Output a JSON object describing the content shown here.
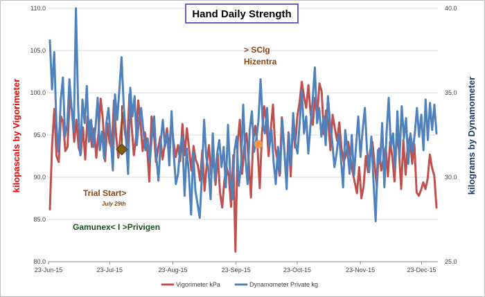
{
  "chart_data": {
    "type": "line",
    "title": "Hand Daily Strength",
    "ylabel_left": "kilopascals  by Vigorimeter",
    "ylabel_right": "kilograms by Dynamometer",
    "ylim_left": [
      80,
      110
    ],
    "ylim_right": [
      25,
      40
    ],
    "yticks_left": [
      "80.0",
      "85.0",
      "90.0",
      "95.0",
      "100.0",
      "105.0",
      "110.0"
    ],
    "yticks_right": [
      "25.0",
      "30.0",
      "35.0",
      "40.0"
    ],
    "x_date_start": "2015-06-23",
    "x_date_end": "2015-12-31",
    "xticks": [
      "23-Jun-15",
      "23-Jul-15",
      "23-Aug-15",
      "23-Sep-15",
      "23-Oct-15",
      "23-Nov-15",
      "23-Dec-15"
    ],
    "grid": "horizontal",
    "legend_position": "bottom",
    "series": [
      {
        "name": "Vigorimeter kPa",
        "axis": "left",
        "color": "#c0504d",
        "values": [
          86.2,
          93.8,
          98.1,
          92.5,
          91.8,
          97.2,
          96.5,
          93.1,
          93.6,
          99.4,
          97.8,
          94.2,
          96.8,
          93.5,
          92.7,
          95.9,
          92.1,
          97.2,
          96.4,
          93.6,
          95.8,
          92.3,
          95.2,
          99.3,
          96.8,
          91.9,
          96.4,
          94.1,
          93.4,
          99.1,
          94.8,
          92.3,
          95.1,
          97.6,
          95.2,
          93.8,
          99.8,
          96.1,
          92.6,
          94.7,
          99.1,
          96.4,
          93.1,
          95.3,
          93.6,
          89.5,
          97.2,
          95.6,
          91.8,
          93.4,
          94.8,
          92.1,
          93.9,
          95.8,
          93.2,
          96.7,
          94.1,
          92.4,
          93.8,
          91.9,
          96.3,
          92.6,
          95.8,
          93.4,
          90.8,
          93.7,
          92.1,
          91.4,
          89.6,
          93.2,
          88.4,
          91.5,
          93.8,
          90.2,
          92.6,
          89.1,
          92.8,
          88.2,
          86.4,
          89.7,
          91.2,
          90.1,
          86.5,
          92.6,
          81.2,
          94.1,
          96.8,
          90.4,
          93.6,
          95.2,
          91.8,
          87.6,
          94.3,
          96.1,
          93.5,
          88.7,
          95.2,
          98.4,
          96.6,
          92.5,
          95.7,
          98.6,
          93.4,
          92.1,
          90.2,
          97.1,
          93.7,
          89.4,
          95.3,
          90.1,
          96.4,
          93.5,
          97.2,
          98.8,
          101.3,
          99.6,
          98.2,
          100.9,
          97.5,
          96.2,
          99.4,
          97.2,
          101.1,
          100.2,
          95.1,
          97.9,
          96.6,
          93.2,
          97.4,
          95.8,
          94.3,
          96.5,
          93.4,
          91.8,
          92.6,
          94.2,
          92.4,
          90.7,
          89.4,
          88.1,
          91.2,
          87.5,
          88.9,
          92.5,
          90.6,
          93.2,
          94.2,
          91.5,
          88.8,
          93.4,
          90.8,
          92.2,
          93.6,
          90.1,
          94.2,
          92.4,
          89.5,
          95.1,
          93.2,
          88.6,
          94.4,
          90.3,
          93.7,
          94.8,
          91.6,
          93.9,
          88.2,
          87.8,
          88.5,
          89.4,
          88.6,
          89.8,
          92.7,
          91.1,
          90.2,
          86.4
        ]
      },
      {
        "name": "Dynamometer Private kg",
        "axis": "right",
        "color": "#4f81bd",
        "values": [
          38.1,
          35.2,
          37.4,
          33.1,
          31.5,
          34.6,
          35.9,
          32.4,
          33.1,
          35.8,
          34.1,
          32.7,
          40.0,
          34.2,
          31.3,
          34.6,
          33.2,
          35.4,
          32.1,
          33.4,
          31.8,
          32.9,
          34.7,
          31.6,
          32.7,
          31.1,
          33.2,
          34.1,
          32.3,
          30.4,
          34.9,
          33.4,
          35.2,
          37.1,
          34.2,
          32.4,
          30.2,
          35.3,
          33.6,
          34.8,
          31.9,
          33.4,
          34.1,
          32.8,
          31.6,
          32.3,
          30.9,
          32.4,
          33.6,
          31.2,
          29.8,
          32.1,
          33.4,
          31.8,
          32.6,
          30.7,
          33.9,
          31.4,
          29.6,
          30.2,
          31.8,
          32.4,
          28.9,
          31.7,
          30.2,
          27.8,
          31.5,
          29.2,
          28.4,
          27.6,
          30.1,
          33.4,
          31.2,
          30.5,
          28.7,
          32.6,
          29.8,
          31.4,
          32.2,
          30.6,
          31.8,
          29.4,
          33.1,
          30.2,
          28.7,
          31.6,
          32.4,
          29.5,
          30.7,
          34.3,
          31.2,
          29.6,
          32.8,
          33.9,
          31.5,
          32.2,
          33.3,
          35.8,
          33.2,
          32.6,
          34.1,
          31.7,
          32.8,
          30.9,
          29.6,
          31.8,
          30.2,
          33.4,
          31.5,
          29.3,
          32.6,
          30.7,
          33.8,
          32.1,
          31.4,
          33.2,
          35.1,
          32.6,
          33.6,
          31.4,
          33.1,
          34.6,
          36.5,
          33.2,
          34.1,
          32.4,
          33.6,
          31.9,
          34.8,
          33.2,
          32.1,
          30.6,
          31.4,
          32.6,
          31.1,
          29.4,
          32.8,
          31.6,
          30.2,
          32.5,
          30.1,
          31.9,
          33.6,
          31.2,
          32.8,
          34.1,
          31.6,
          30.3,
          32.4,
          29.7,
          27.4,
          31.6,
          30.8,
          33.2,
          29.4,
          32.6,
          34.7,
          31.8,
          32.6,
          30.5,
          33.9,
          31.2,
          34.2,
          32.3,
          33.5,
          30.8,
          32.6,
          31.5,
          32.6,
          34.1,
          32.4,
          33.7,
          31.6,
          34.6,
          32.2,
          34.4,
          32.8,
          34.3,
          32.6
        ]
      }
    ],
    "annotations": [
      {
        "text": "> SCIg",
        "color": "#8b4513"
      },
      {
        "text": "Hizentra",
        "color": "#8b4513"
      },
      {
        "text": "Trial Start>",
        "color": "#8b4513"
      },
      {
        "text": "July 29th",
        "color": "#8b4513"
      },
      {
        "text": "Gamunex< I >Privigen",
        "color": "#1a4d1a"
      }
    ],
    "markers": [
      {
        "name": "trial-start-marker",
        "date": "2015-07-29",
        "value": 93.3,
        "shape": "diamond",
        "color": "#7f6000"
      },
      {
        "name": "scig-marker",
        "date": "2015-10-04",
        "value": 93.9,
        "shape": "circle",
        "color": "#f79646"
      }
    ]
  }
}
